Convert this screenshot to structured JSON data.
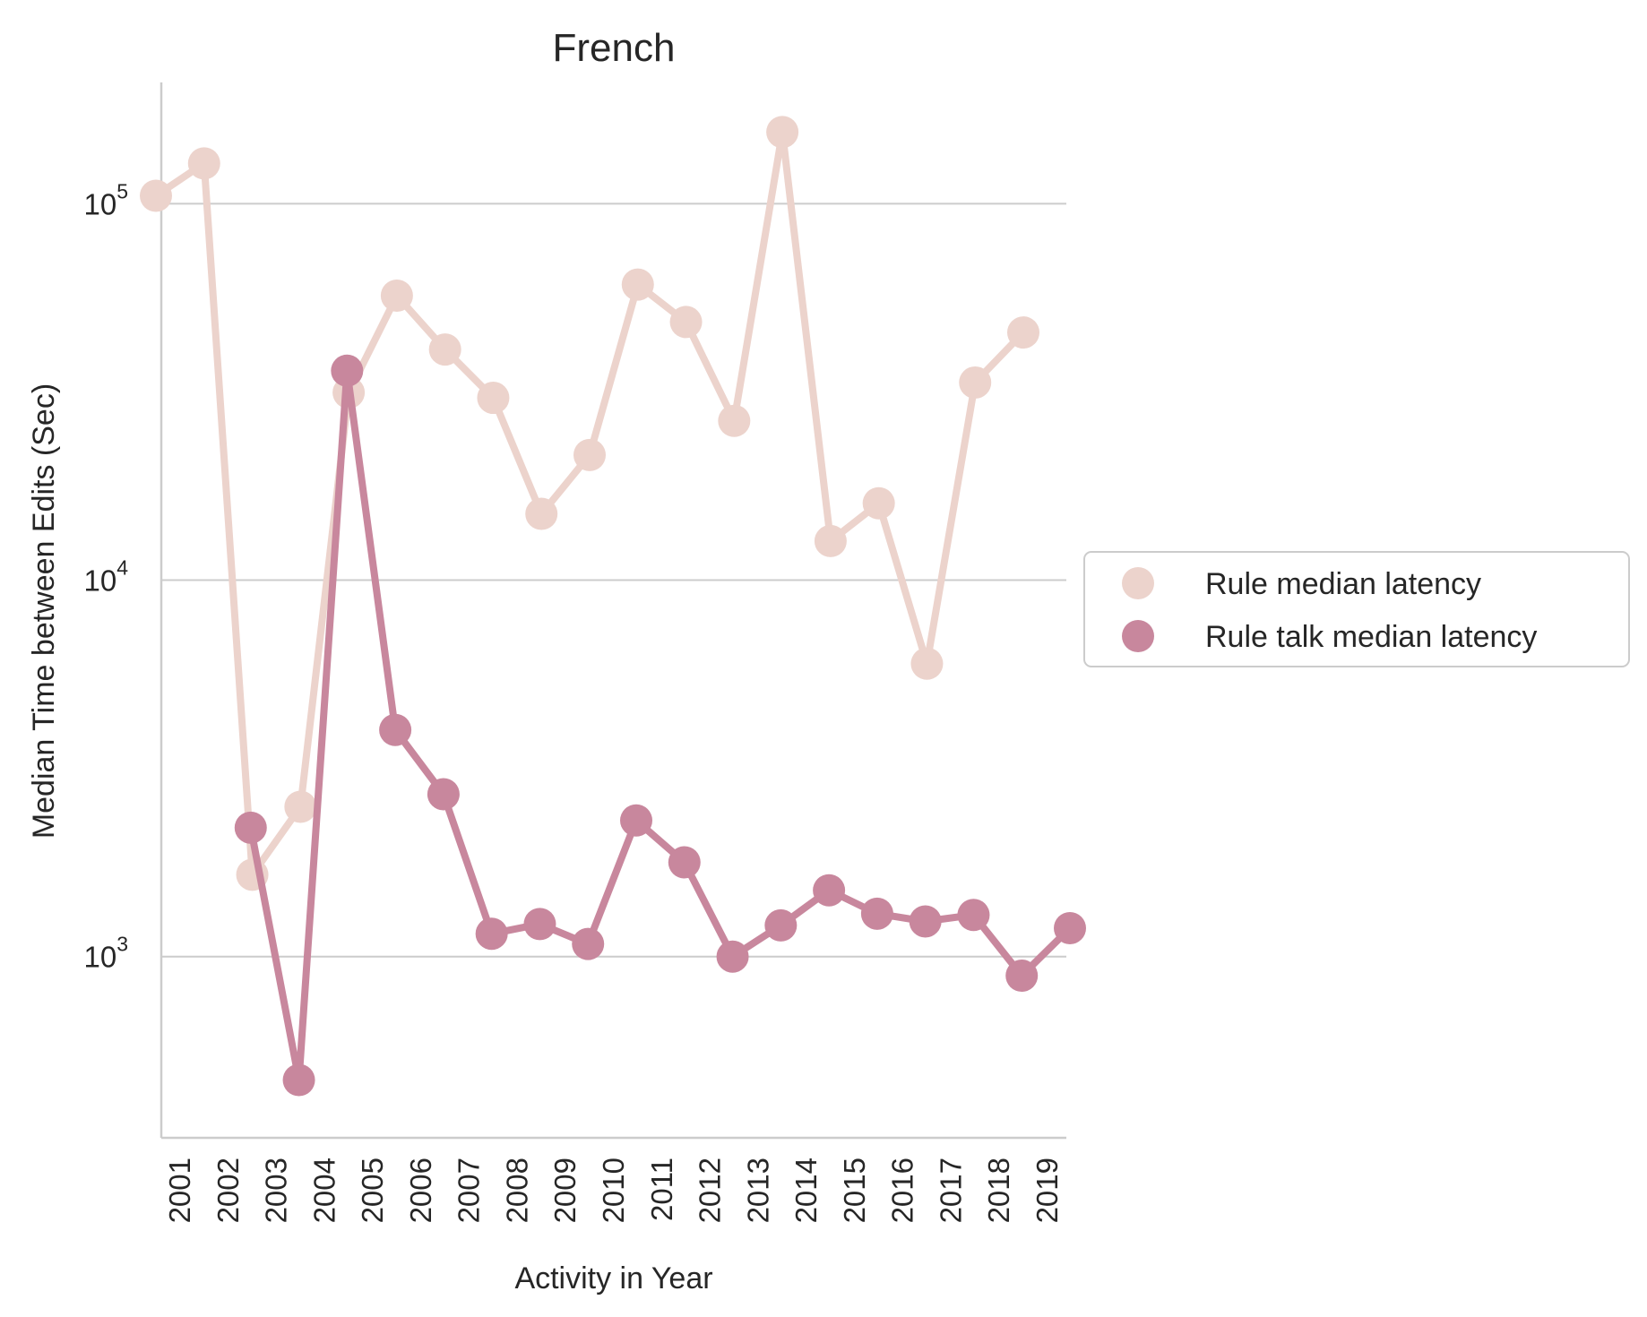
{
  "chart_data": {
    "type": "line",
    "title": "French",
    "xlabel": "Activity in Year",
    "ylabel": "Median Time between Edits (Sec)",
    "y_scale": "log",
    "ylim": [
      330,
      210000
    ],
    "y_ticks": [
      {
        "value": 1000,
        "base": "10",
        "exp": "3"
      },
      {
        "value": 10000,
        "base": "10",
        "exp": "4"
      },
      {
        "value": 100000,
        "base": "10",
        "exp": "5"
      }
    ],
    "grid": "horizontal",
    "legend_position": "right",
    "categories": [
      "2001",
      "2002",
      "2003",
      "2004",
      "2005",
      "2006",
      "2007",
      "2008",
      "2009",
      "2010",
      "2011",
      "2012",
      "2013",
      "2014",
      "2015",
      "2016",
      "2017",
      "2018",
      "2019"
    ],
    "series": [
      {
        "name": "Rule median latency",
        "color": "#ecd3cc",
        "values": [
          105000,
          128000,
          1650,
          2500,
          31500,
          57000,
          41000,
          30500,
          15000,
          21500,
          61000,
          48500,
          26500,
          155000,
          12700,
          16000,
          6000,
          33500,
          45500
        ]
      },
      {
        "name": "Rule talk median latency",
        "color": "#c8879d",
        "values": [
          null,
          2200,
          470,
          36000,
          4000,
          2700,
          1150,
          1220,
          1080,
          2300,
          1780,
          1000,
          1210,
          1500,
          1300,
          1240,
          1290,
          890,
          1190
        ]
      }
    ]
  }
}
